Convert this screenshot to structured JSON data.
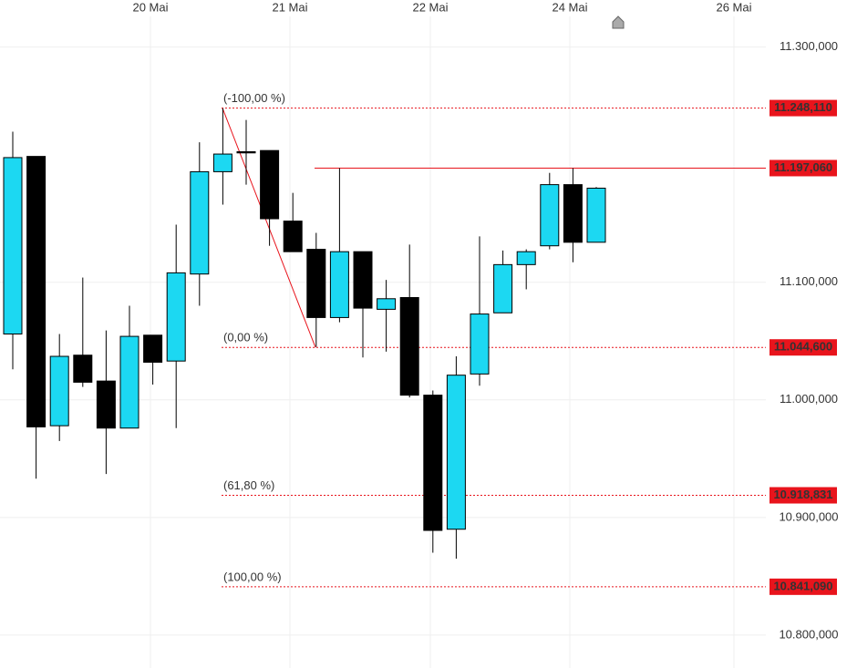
{
  "chart_data": {
    "type": "candlestick",
    "categories": [
      null,
      null,
      null,
      null,
      null,
      null,
      null,
      null,
      null,
      null,
      null,
      null,
      null,
      null,
      null,
      null,
      null,
      null,
      null,
      null,
      null,
      null,
      null,
      null,
      null,
      null
    ],
    "x_labels": [
      "20 Mai",
      "21 Mai",
      "22 Mai",
      "24 Mai",
      "26 Mai"
    ],
    "open": [
      11056,
      11207,
      10978,
      11038,
      11016,
      10976,
      11055,
      11033,
      11107,
      11194,
      11211,
      11212,
      11152,
      11128,
      11070,
      11126,
      11077,
      11087,
      11004,
      10890,
      11022,
      11074,
      11115,
      11131,
      11183,
      11134
    ],
    "high": [
      11228,
      11207,
      11056,
      11104,
      11059,
      11080,
      11055,
      11149,
      11219,
      11248,
      11238,
      11212,
      11176,
      11142,
      11197,
      11126,
      11102,
      11132,
      11008,
      11037,
      11139,
      11127,
      11128,
      11193,
      11197,
      11181
    ],
    "low": [
      11026,
      10933,
      10965,
      11011,
      10937,
      10976,
      11013,
      10976,
      11080,
      11166,
      11183,
      11131,
      11126,
      11045,
      11066,
      11036,
      11041,
      11002,
      10870,
      10865,
      11012,
      11074,
      11094,
      11128,
      11117,
      11134
    ],
    "close": [
      11206,
      10977,
      11037,
      11015,
      10976,
      11054,
      11032,
      11108,
      11194,
      11209,
      11210,
      11154,
      11126,
      11070,
      11126,
      11078,
      11086,
      11004,
      10889,
      11021,
      11073,
      11115,
      11126,
      11183,
      11134,
      11180
    ],
    "up_color": "#1cd8f2",
    "down_color": "#000000",
    "ylim": [
      10772,
      11340
    ],
    "yticks": [
      {
        "value": 10800,
        "label": "10.800,000"
      },
      {
        "value": 10900,
        "label": "10.900,000"
      },
      {
        "value": 11000,
        "label": "11.000,000"
      },
      {
        "value": 11100,
        "label": "11.100,000"
      },
      {
        "value": 11300,
        "label": "11.300,000"
      }
    ],
    "grid": true,
    "levels": [
      {
        "label": "(-100,00 %)",
        "value": 11248.11,
        "value_label": "11.248,110",
        "line_style": "dashed"
      },
      {
        "value": 11197.06,
        "value_label": "11.197,060",
        "line_style": "solid"
      },
      {
        "label": "(0,00 %)",
        "value": 11044.6,
        "value_label": "11.044,600",
        "line_style": "dashed"
      },
      {
        "label": "(61,80 %)",
        "value": 10918.831,
        "value_label": "10.918,831",
        "line_style": "dashed"
      },
      {
        "label": "(100,00 %)",
        "value": 10841.09,
        "value_label": "10.841,090",
        "line_style": "dashed"
      }
    ],
    "level_color": "#e8141c"
  }
}
